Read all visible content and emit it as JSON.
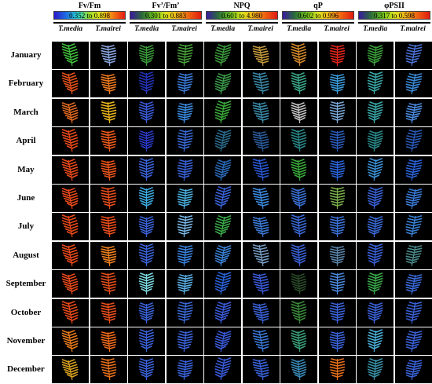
{
  "columns": [
    {
      "title": "Fv/Fm",
      "scale": "0.352 to 0.898",
      "gradient": [
        "#2b18c9",
        "#1e6be0",
        "#25d1cf",
        "#9ad92b",
        "#f2e51c",
        "#f07a12",
        "#e61a12"
      ]
    },
    {
      "title": "Fv’/Fm’",
      "scale": "0.301 to 0.883",
      "gradient": [
        "#3a1aa0",
        "#2a6b3a",
        "#6cc21e",
        "#d8e01a",
        "#f3b21a",
        "#ee6010",
        "#e01a12"
      ]
    },
    {
      "title": "NPQ",
      "scale": "0.601 to 4.980",
      "gradient": [
        "#3a1aa0",
        "#2a6b3a",
        "#6cc21e",
        "#d8e01a",
        "#f3b21a",
        "#ee6010",
        "#e01a12"
      ]
    },
    {
      "title": "qP",
      "scale": "0.602 to 0.996",
      "gradient": [
        "#3a1aa0",
        "#2a6b3a",
        "#6cc21e",
        "#d8e01a",
        "#f3b21a",
        "#ee6010",
        "#e01a12"
      ]
    },
    {
      "title": "φPSII",
      "scale": "0.317 to 0.598",
      "gradient": [
        "#3a1aa0",
        "#2a6b3a",
        "#6cc21e",
        "#d8e01a",
        "#f3b21a",
        "#ee6010",
        "#e01a12"
      ]
    }
  ],
  "species": [
    "T.media",
    "T.mairei"
  ],
  "rows": [
    {
      "month": "January",
      "cells": [
        "#3fbf3a",
        "#8aa7e0",
        "#3a9a3a",
        "#48a23a",
        "#3a9a3a",
        "#c59a3a",
        "#d68a2a",
        "#e3241a",
        "#3aa03a",
        "#4a72d8"
      ]
    },
    {
      "month": "February",
      "cells": [
        "#e8521a",
        "#f07a1e",
        "#2233b8",
        "#3a7ad8",
        "#3a9a4a",
        "#3a8aa8",
        "#3aa88a",
        "#3a9ad8",
        "#3aa8a8",
        "#3a8ad8"
      ]
    },
    {
      "month": "March",
      "cells": [
        "#e0681e",
        "#f0b81e",
        "#3a5ad8",
        "#3a8ae0",
        "#3aaa3a",
        "#3a8aa8",
        "#c4c4c4",
        "#7aa8d8",
        "#3aa8a8",
        "#4a8ae0"
      ]
    },
    {
      "month": "April",
      "cells": [
        "#ea4a1a",
        "#ee5a1a",
        "#2a3ac8",
        "#3a6ad8",
        "#2a6a8a",
        "#2a5a9a",
        "#2a8a8a",
        "#2a5ab8",
        "#2a8a8a",
        "#2a5ab8"
      ]
    },
    {
      "month": "May",
      "cells": [
        "#ea4a1a",
        "#ee561a",
        "#3a62d8",
        "#3a62d8",
        "#2a6ab8",
        "#2a5ad8",
        "#3aaa3a",
        "#2a62d8",
        "#3a92d8",
        "#2a62d8"
      ]
    },
    {
      "month": "June",
      "cells": [
        "#ea4a1a",
        "#ee4e1a",
        "#3aaae0",
        "#4ab0e0",
        "#3a62d8",
        "#3a8ae0",
        "#3a72d8",
        "#7ab04a",
        "#3a62d8",
        "#3a7ad8"
      ]
    },
    {
      "month": "July",
      "cells": [
        "#ea4a1a",
        "#ee4e1a",
        "#3a62d8",
        "#7ab8e8",
        "#3aaa4a",
        "#3a7ad8",
        "#3a6ad8",
        "#3a72d8",
        "#3a6ad8",
        "#3a82d8"
      ]
    },
    {
      "month": "August",
      "cells": [
        "#ea4a1a",
        "#f0801e",
        "#3a62d8",
        "#3a82e0",
        "#3a82d8",
        "#7aa0c8",
        "#3a62d8",
        "#5a82a8",
        "#3a62d8",
        "#4a8a8a"
      ]
    },
    {
      "month": "September",
      "cells": [
        "#e84a1a",
        "#ea4e1a",
        "#7ad8e0",
        "#5ab0e8",
        "#2a62d8",
        "#3a5ad8",
        "#2a4a2a",
        "#4a8ae0",
        "#3aaa4a",
        "#3a6ad8"
      ]
    },
    {
      "month": "October",
      "cells": [
        "#e84a1a",
        "#ea4e1a",
        "#3a62d8",
        "#3a6ad8",
        "#3a5ad8",
        "#3a62d8",
        "#3a8a3a",
        "#3a62d8",
        "#3a62d8",
        "#3a62d8"
      ]
    },
    {
      "month": "November",
      "cells": [
        "#e87a1a",
        "#ee6a1a",
        "#3a62d8",
        "#3a62d8",
        "#3a5ad8",
        "#3a7ad8",
        "#3aa07a",
        "#3a62d8",
        "#4ab0d8",
        "#3a62d8"
      ]
    },
    {
      "month": "December",
      "cells": [
        "#d8a01e",
        "#e8701a",
        "#3a62d8",
        "#3a62d8",
        "#3a5ad8",
        "#3a62d8",
        "#3a8ab8",
        "#e8701a",
        "#3a92a8",
        "#3a62d8"
      ]
    }
  ]
}
